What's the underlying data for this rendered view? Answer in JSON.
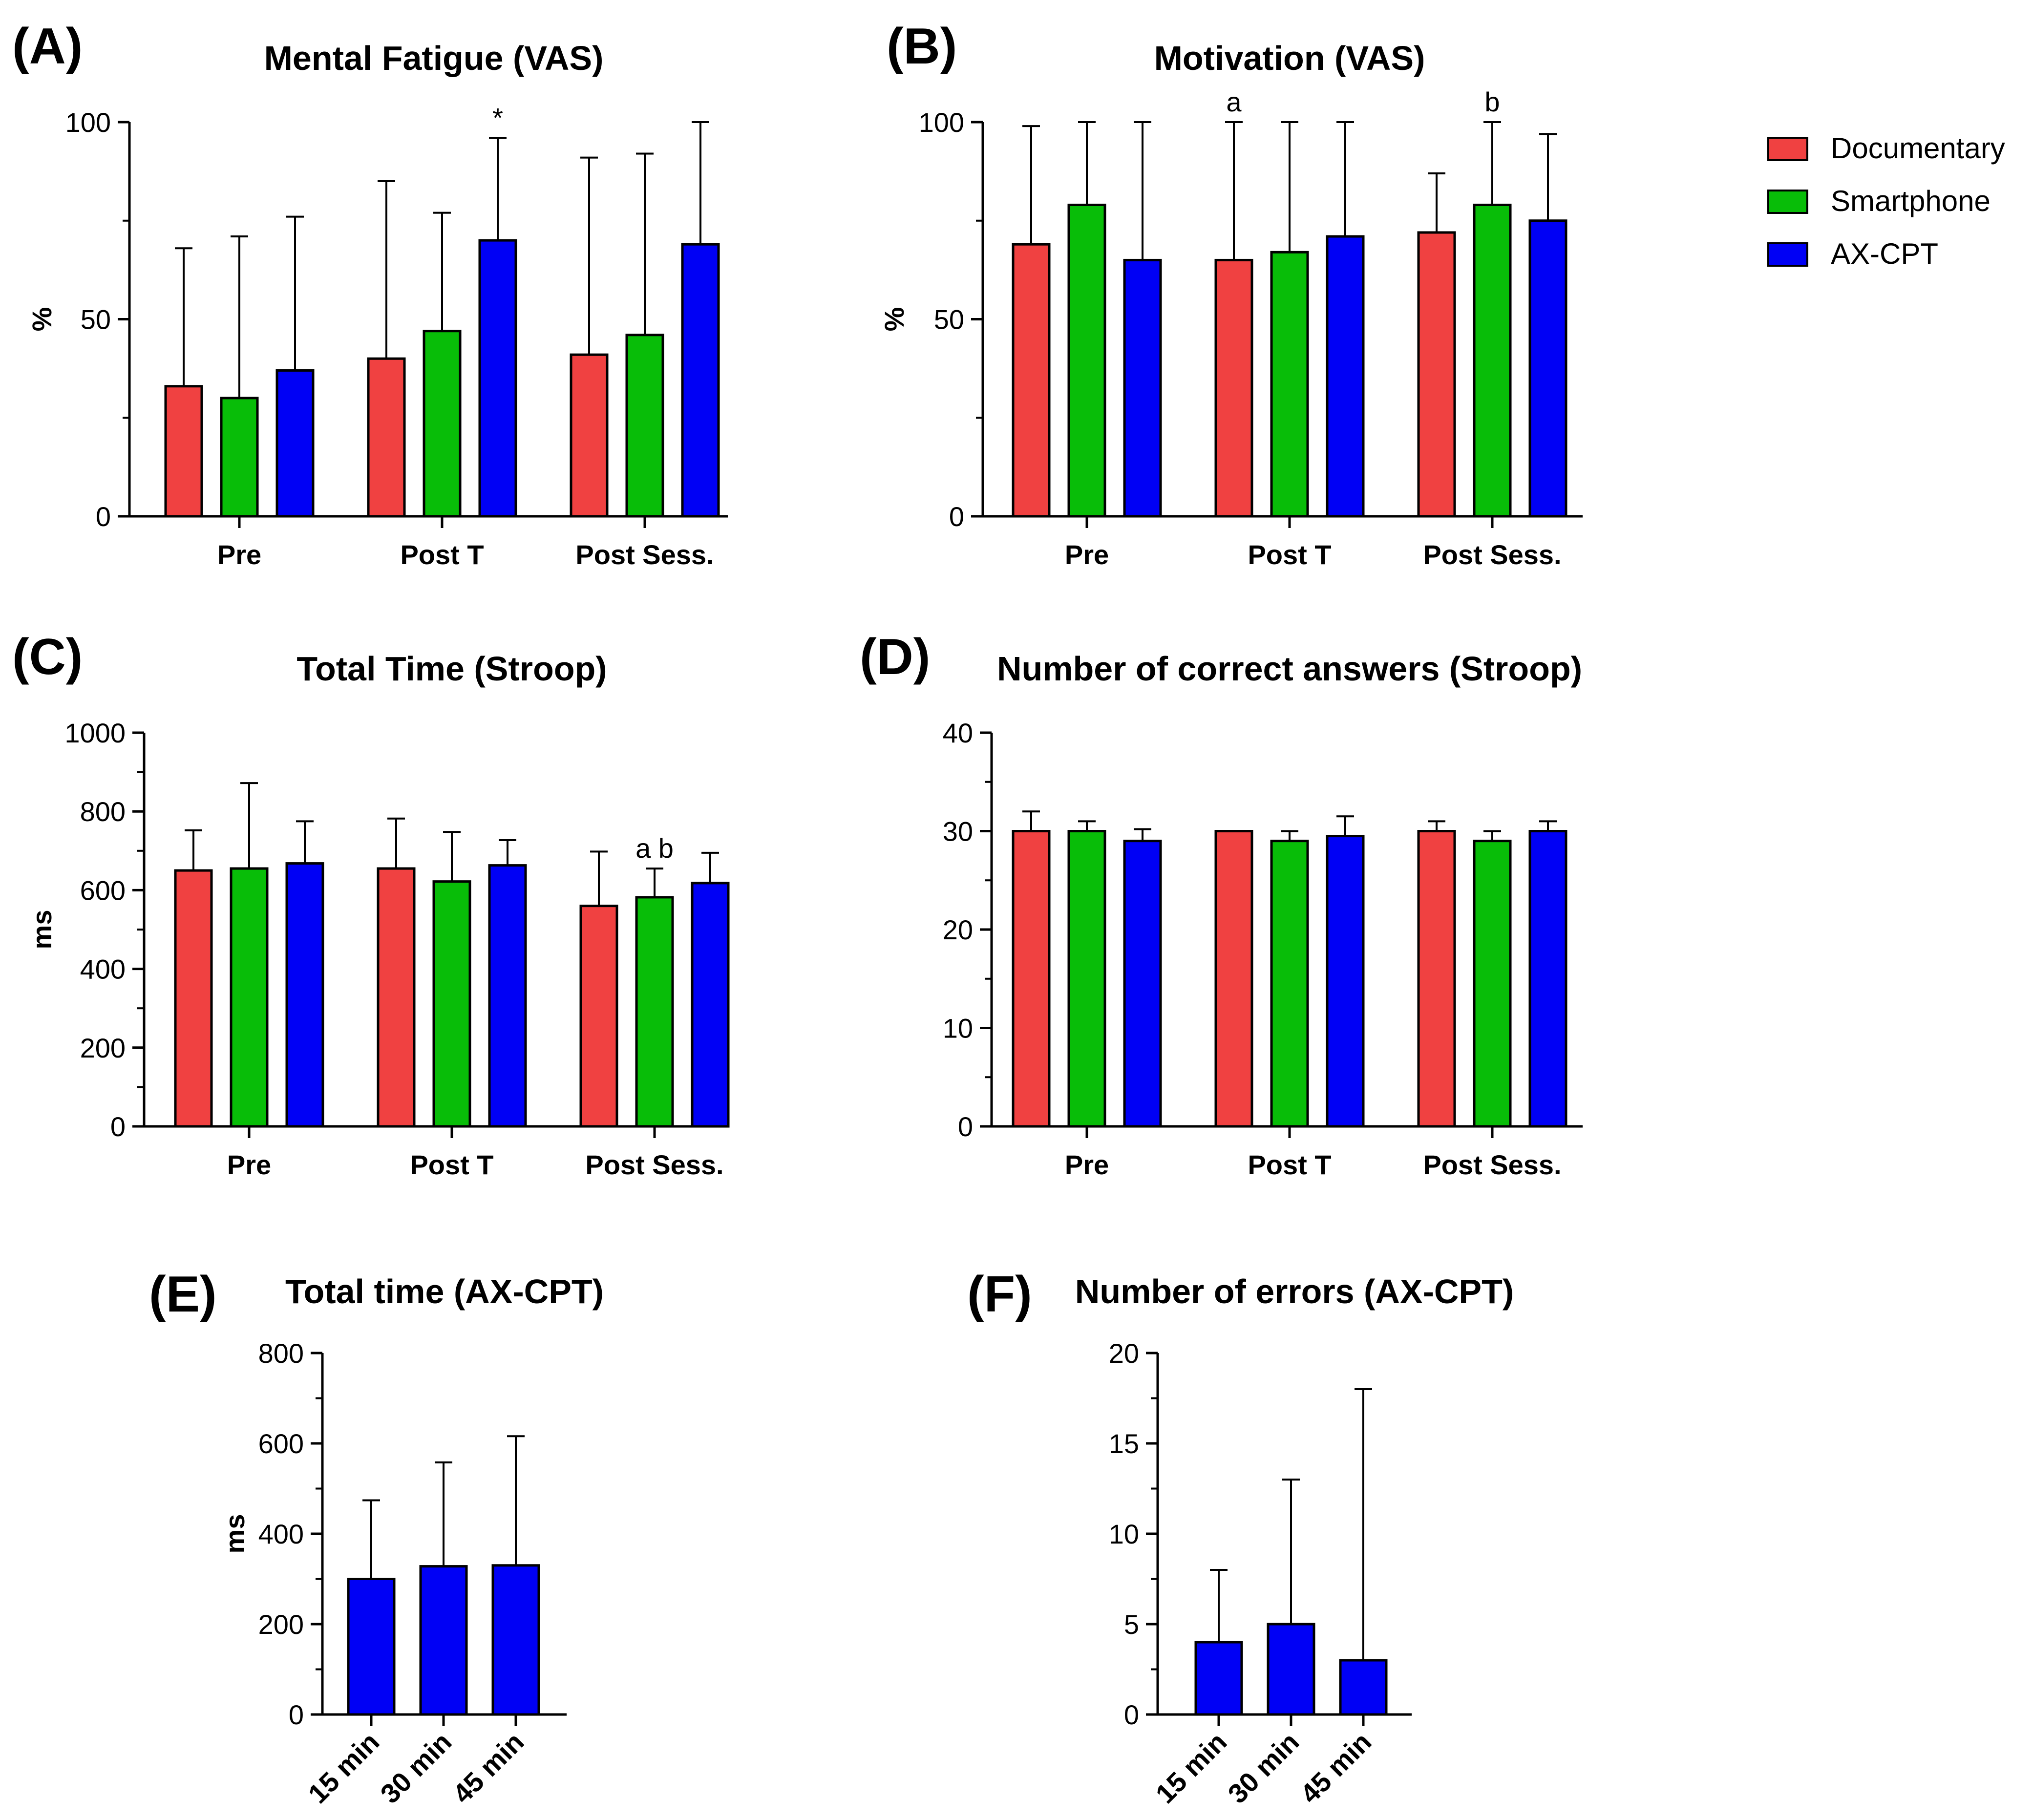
{
  "legend": {
    "items": [
      {
        "label": "Documentary",
        "color": "#f04141"
      },
      {
        "label": "Smartphone",
        "color": "#08bd08"
      },
      {
        "label": "AX-CPT",
        "color": "#0000f5"
      }
    ]
  },
  "chart_data": [
    {
      "panel_label": "(A)",
      "title": "Mental Fatigue (VAS)",
      "type": "bar",
      "ylabel": "%",
      "ylim": [
        0,
        100
      ],
      "yticks": [
        "0",
        "50",
        "100"
      ],
      "categories": [
        "Pre",
        "Post T",
        "Post Sess."
      ],
      "series": [
        {
          "name": "Documentary",
          "values": [
            33,
            40,
            41
          ],
          "err_upper": [
            68,
            85,
            91
          ]
        },
        {
          "name": "Smartphone",
          "values": [
            30,
            47,
            46
          ],
          "err_upper": [
            71,
            77,
            92
          ]
        },
        {
          "name": "AX-CPT",
          "values": [
            37,
            70,
            69
          ],
          "err_upper": [
            76,
            96,
            100
          ]
        }
      ],
      "annotations": [
        {
          "category": 1,
          "series": 2,
          "text": "*"
        }
      ]
    },
    {
      "panel_label": "(B)",
      "title": "Motivation (VAS)",
      "type": "bar",
      "ylabel": "%",
      "ylim": [
        0,
        100
      ],
      "yticks": [
        "0",
        "50",
        "100"
      ],
      "categories": [
        "Pre",
        "Post T",
        "Post Sess."
      ],
      "series": [
        {
          "name": "Documentary",
          "values": [
            69,
            65,
            72
          ],
          "err_upper": [
            99,
            100,
            87
          ]
        },
        {
          "name": "Smartphone",
          "values": [
            79,
            67,
            79
          ],
          "err_upper": [
            100,
            100,
            100
          ]
        },
        {
          "name": "AX-CPT",
          "values": [
            65,
            71,
            75
          ],
          "err_upper": [
            100,
            100,
            97
          ]
        }
      ],
      "annotations": [
        {
          "category": 1,
          "series": 0,
          "text": "a"
        },
        {
          "category": 2,
          "series": 1,
          "text": "b"
        }
      ]
    },
    {
      "panel_label": "(C)",
      "title": "Total Time (Stroop)",
      "type": "bar",
      "ylabel": "ms",
      "ylim": [
        0,
        1000
      ],
      "yticks": [
        "0",
        "200",
        "400",
        "600",
        "800",
        "1000"
      ],
      "categories": [
        "Pre",
        "Post T",
        "Post Sess."
      ],
      "series": [
        {
          "name": "Documentary",
          "values": [
            650,
            655,
            560
          ],
          "err_upper": [
            752,
            782,
            698
          ]
        },
        {
          "name": "Smartphone",
          "values": [
            655,
            622,
            582
          ],
          "err_upper": [
            872,
            748,
            655
          ]
        },
        {
          "name": "AX-CPT",
          "values": [
            668,
            663,
            618
          ],
          "err_upper": [
            775,
            727,
            695
          ]
        }
      ],
      "annotations": [
        {
          "category": 2,
          "series": 1,
          "text": "a b"
        }
      ]
    },
    {
      "panel_label": "(D)",
      "title": "Number of correct answers (Stroop)",
      "type": "bar",
      "ylabel": "",
      "ylim": [
        0,
        40
      ],
      "yticks": [
        "0",
        "10",
        "20",
        "30",
        "40"
      ],
      "categories": [
        "Pre",
        "Post T",
        "Post Sess."
      ],
      "series": [
        {
          "name": "Documentary",
          "values": [
            30,
            30,
            30
          ],
          "err_upper": [
            32,
            30,
            31
          ]
        },
        {
          "name": "Smartphone",
          "values": [
            30,
            29,
            29
          ],
          "err_upper": [
            31,
            30,
            30
          ]
        },
        {
          "name": "AX-CPT",
          "values": [
            29,
            29.5,
            30
          ],
          "err_upper": [
            30.2,
            31.5,
            31
          ]
        }
      ],
      "annotations": []
    },
    {
      "panel_label": "(E)",
      "title": "Total time (AX-CPT)",
      "type": "bar",
      "ylabel": "ms",
      "ylim": [
        0,
        800
      ],
      "yticks": [
        "0",
        "200",
        "400",
        "600",
        "800"
      ],
      "categories": [
        "15 min",
        "30 min",
        "45 min"
      ],
      "series": [
        {
          "name": "AX-CPT",
          "values": [
            300,
            328,
            330
          ],
          "err_upper": [
            474,
            558,
            616
          ]
        }
      ],
      "annotations": []
    },
    {
      "panel_label": "(F)",
      "title": "Number of errors (AX-CPT)",
      "type": "bar",
      "ylabel": "",
      "ylim": [
        0,
        20
      ],
      "yticks": [
        "0",
        "5",
        "10",
        "15",
        "20"
      ],
      "categories": [
        "15 min",
        "30 min",
        "45 min"
      ],
      "series": [
        {
          "name": "AX-CPT",
          "values": [
            4,
            5,
            3
          ],
          "err_upper": [
            8,
            13,
            18
          ]
        }
      ],
      "annotations": []
    }
  ]
}
